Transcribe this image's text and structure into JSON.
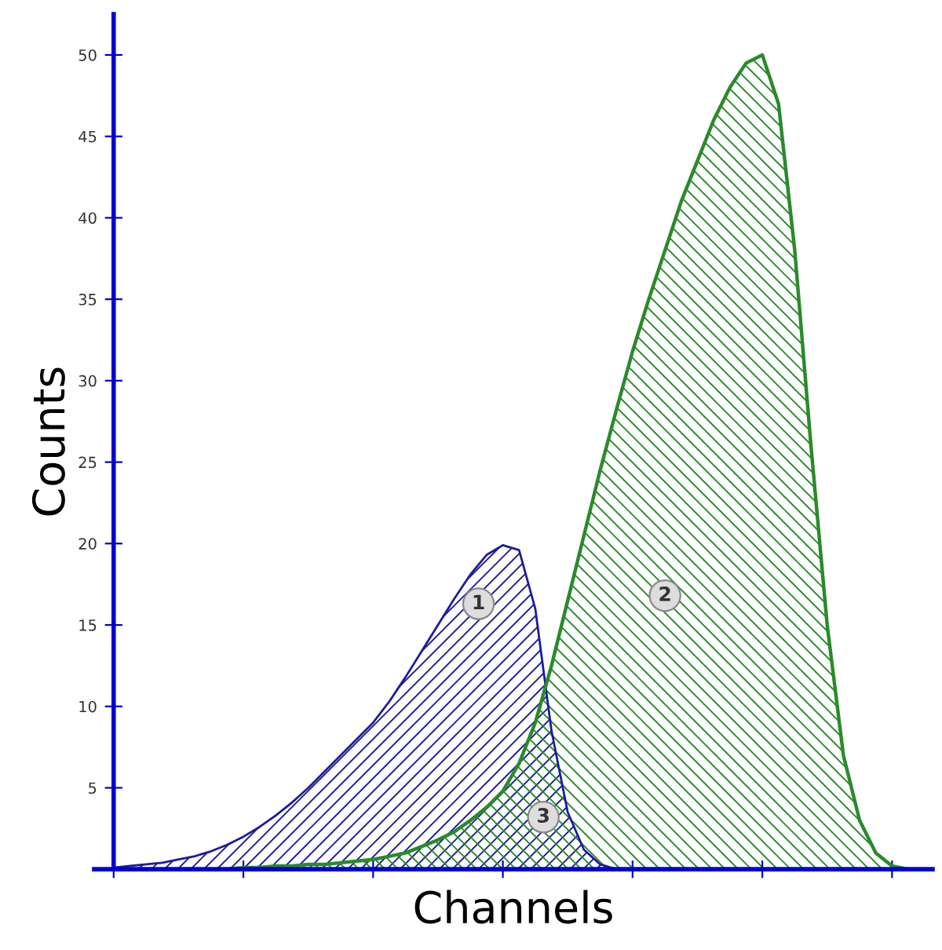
{
  "chart_data": {
    "type": "area",
    "xlabel": "Channels",
    "ylabel": "Counts",
    "categories": [
      null,
      null,
      null,
      null,
      null,
      null,
      null,
      null,
      null,
      null,
      null,
      null,
      null,
      null,
      null,
      null,
      null,
      null,
      null,
      null,
      null,
      null,
      null,
      null,
      null,
      null,
      null,
      null,
      null,
      null,
      null,
      null,
      null,
      null,
      null,
      null,
      null,
      null,
      null,
      null,
      null,
      null,
      null,
      null,
      null,
      null,
      null,
      null,
      null,
      null,
      null
    ],
    "series": [
      {
        "color": "#1c1c9c",
        "values": [
          0.1,
          0.2,
          0.3,
          0.4,
          0.6,
          0.8,
          1.1,
          1.5,
          2.0,
          2.6,
          3.3,
          4.1,
          5.0,
          6.0,
          7.0,
          8.0,
          9.0,
          10.3,
          11.8,
          13.4,
          15.0,
          16.6,
          18.1,
          19.3,
          19.9,
          19.6,
          16.0,
          8.5,
          3.5,
          1.2,
          0.3,
          0,
          0,
          0,
          0,
          0,
          0,
          0,
          0,
          0,
          0,
          0,
          0,
          0,
          0,
          0,
          0,
          0,
          0,
          0,
          0
        ]
      },
      {
        "color": "#2a8a2a",
        "values": [
          0,
          0,
          0,
          0,
          0,
          0,
          0,
          0,
          0.1,
          0.1,
          0.2,
          0.2,
          0.3,
          0.3,
          0.4,
          0.5,
          0.6,
          0.8,
          1.0,
          1.4,
          1.8,
          2.3,
          3.0,
          3.8,
          4.8,
          6.5,
          9.0,
          12.5,
          16.5,
          20.5,
          24.5,
          28.2,
          31.8,
          35.0,
          38.0,
          41.0,
          43.5,
          46.0,
          48.0,
          49.5,
          50.0,
          47.0,
          38.0,
          26.0,
          15.0,
          7.0,
          3.0,
          1.0,
          0.2,
          0,
          0
        ]
      }
    ],
    "ylim": [
      0,
      52.5
    ],
    "yticks": [
      {
        "value": 0,
        "label": null
      },
      5,
      10,
      15,
      20,
      25,
      30,
      35,
      40,
      45,
      50
    ],
    "annotations": [
      {
        "text": "1",
        "y": 16.3
      },
      {
        "text": "2",
        "y": 16.8
      },
      {
        "text": "3",
        "y": 3.2
      }
    ]
  }
}
